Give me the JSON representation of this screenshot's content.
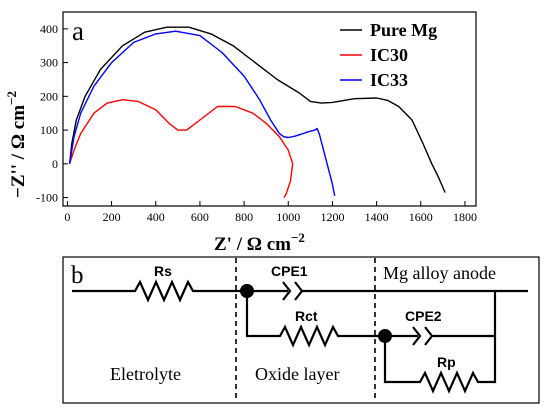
{
  "chart_data": {
    "panel_label": "a",
    "type": "line",
    "xlabel": "Z' / Ω  cm",
    "xlabel_sup": "−2",
    "ylabel": "−Z'' / Ω  cm",
    "ylabel_sup": "−2",
    "xlim": [
      -20,
      1850
    ],
    "ylim": [
      -125,
      450
    ],
    "xticks": [
      0,
      200,
      400,
      600,
      800,
      1000,
      1200,
      1400,
      1600,
      1800
    ],
    "yticks": [
      -100,
      0,
      100,
      200,
      300,
      400
    ],
    "legend_position": "top-right",
    "series": [
      {
        "name": "Pure Mg",
        "color": "#000000",
        "points": [
          [
            10,
            0
          ],
          [
            20,
            60
          ],
          [
            40,
            130
          ],
          [
            80,
            200
          ],
          [
            150,
            280
          ],
          [
            250,
            350
          ],
          [
            350,
            390
          ],
          [
            450,
            405
          ],
          [
            550,
            405
          ],
          [
            650,
            385
          ],
          [
            750,
            350
          ],
          [
            850,
            300
          ],
          [
            950,
            250
          ],
          [
            1050,
            210
          ],
          [
            1100,
            185
          ],
          [
            1150,
            180
          ],
          [
            1200,
            182
          ],
          [
            1300,
            193
          ],
          [
            1400,
            195
          ],
          [
            1450,
            188
          ],
          [
            1500,
            170
          ],
          [
            1560,
            130
          ],
          [
            1610,
            60
          ],
          [
            1650,
            0
          ],
          [
            1680,
            -40
          ],
          [
            1710,
            -85
          ]
        ]
      },
      {
        "name": "IC30",
        "color": "#ff0000",
        "points": [
          [
            10,
            0
          ],
          [
            30,
            40
          ],
          [
            60,
            90
          ],
          [
            120,
            150
          ],
          [
            180,
            180
          ],
          [
            250,
            190
          ],
          [
            320,
            185
          ],
          [
            400,
            160
          ],
          [
            460,
            120
          ],
          [
            500,
            100
          ],
          [
            540,
            100
          ],
          [
            600,
            130
          ],
          [
            680,
            170
          ],
          [
            760,
            170
          ],
          [
            840,
            150
          ],
          [
            900,
            120
          ],
          [
            960,
            80
          ],
          [
            1000,
            40
          ],
          [
            1020,
            0
          ],
          [
            1010,
            -50
          ],
          [
            990,
            -90
          ],
          [
            980,
            -100
          ]
        ]
      },
      {
        "name": "IC33",
        "color": "#0000ff",
        "points": [
          [
            10,
            0
          ],
          [
            30,
            80
          ],
          [
            60,
            150
          ],
          [
            120,
            230
          ],
          [
            200,
            300
          ],
          [
            300,
            360
          ],
          [
            400,
            385
          ],
          [
            490,
            393
          ],
          [
            600,
            380
          ],
          [
            700,
            330
          ],
          [
            800,
            260
          ],
          [
            870,
            190
          ],
          [
            920,
            130
          ],
          [
            960,
            90
          ],
          [
            980,
            80
          ],
          [
            1000,
            78
          ],
          [
            1030,
            82
          ],
          [
            1060,
            88
          ],
          [
            1090,
            95
          ],
          [
            1120,
            100
          ],
          [
            1130,
            105
          ],
          [
            1140,
            90
          ],
          [
            1160,
            40
          ],
          [
            1180,
            -10
          ],
          [
            1200,
            -60
          ],
          [
            1210,
            -95
          ]
        ]
      }
    ]
  },
  "diagram": {
    "panel_label": "b",
    "labels": {
      "rs": "Rs",
      "cpe1": "CPE1",
      "rct": "Rct",
      "cpe2": "CPE2",
      "rp": "Rp",
      "electrolyte": "Eletrolyte",
      "oxide": "Oxide layer",
      "anode": "Mg alloy anode"
    }
  }
}
